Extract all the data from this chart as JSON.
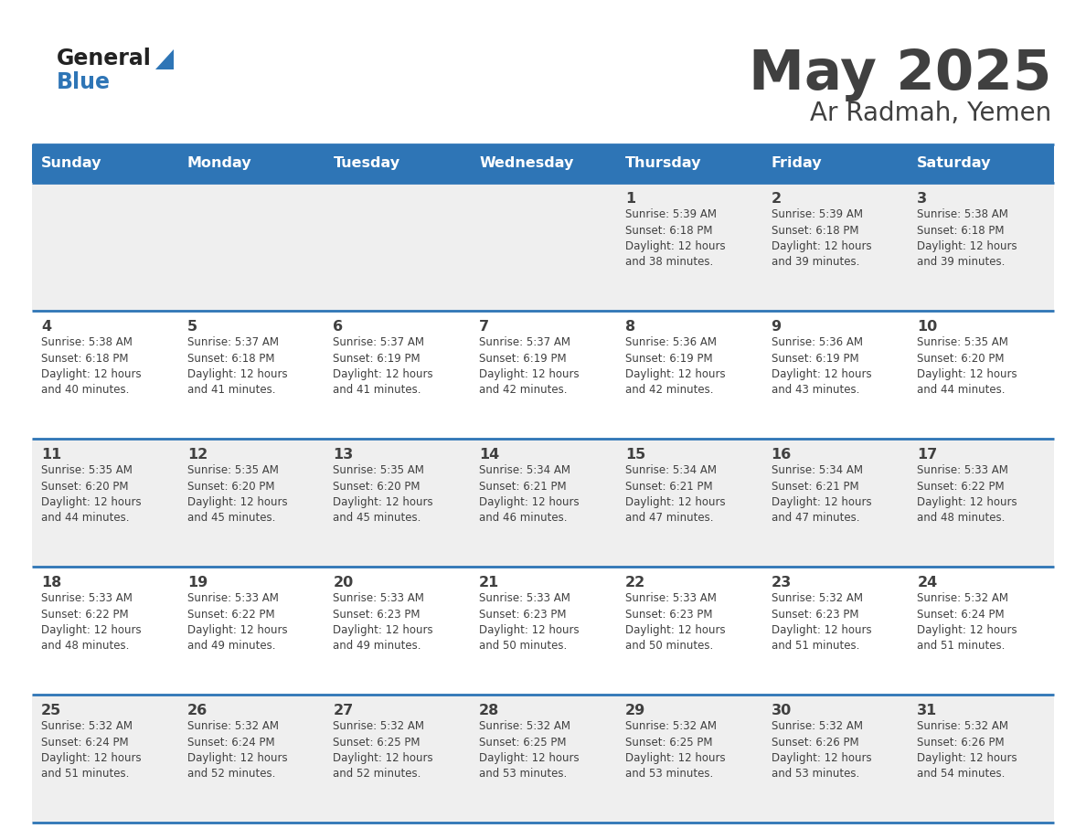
{
  "title": "May 2025",
  "subtitle": "Ar Radmah, Yemen",
  "header_bg": "#2E75B6",
  "header_text_color": "#FFFFFF",
  "cell_bg_odd": "#EFEFEF",
  "cell_bg_even": "#FFFFFF",
  "border_color": "#2E75B6",
  "text_color": "#404040",
  "days_of_week": [
    "Sunday",
    "Monday",
    "Tuesday",
    "Wednesday",
    "Thursday",
    "Friday",
    "Saturday"
  ],
  "weeks": [
    [
      {
        "day": "",
        "sunrise": "",
        "sunset": "",
        "daylight_a": "",
        "daylight_b": ""
      },
      {
        "day": "",
        "sunrise": "",
        "sunset": "",
        "daylight_a": "",
        "daylight_b": ""
      },
      {
        "day": "",
        "sunrise": "",
        "sunset": "",
        "daylight_a": "",
        "daylight_b": ""
      },
      {
        "day": "",
        "sunrise": "",
        "sunset": "",
        "daylight_a": "",
        "daylight_b": ""
      },
      {
        "day": "1",
        "sunrise": "Sunrise: 5:39 AM",
        "sunset": "Sunset: 6:18 PM",
        "daylight_a": "Daylight: 12 hours",
        "daylight_b": "and 38 minutes."
      },
      {
        "day": "2",
        "sunrise": "Sunrise: 5:39 AM",
        "sunset": "Sunset: 6:18 PM",
        "daylight_a": "Daylight: 12 hours",
        "daylight_b": "and 39 minutes."
      },
      {
        "day": "3",
        "sunrise": "Sunrise: 5:38 AM",
        "sunset": "Sunset: 6:18 PM",
        "daylight_a": "Daylight: 12 hours",
        "daylight_b": "and 39 minutes."
      }
    ],
    [
      {
        "day": "4",
        "sunrise": "Sunrise: 5:38 AM",
        "sunset": "Sunset: 6:18 PM",
        "daylight_a": "Daylight: 12 hours",
        "daylight_b": "and 40 minutes."
      },
      {
        "day": "5",
        "sunrise": "Sunrise: 5:37 AM",
        "sunset": "Sunset: 6:18 PM",
        "daylight_a": "Daylight: 12 hours",
        "daylight_b": "and 41 minutes."
      },
      {
        "day": "6",
        "sunrise": "Sunrise: 5:37 AM",
        "sunset": "Sunset: 6:19 PM",
        "daylight_a": "Daylight: 12 hours",
        "daylight_b": "and 41 minutes."
      },
      {
        "day": "7",
        "sunrise": "Sunrise: 5:37 AM",
        "sunset": "Sunset: 6:19 PM",
        "daylight_a": "Daylight: 12 hours",
        "daylight_b": "and 42 minutes."
      },
      {
        "day": "8",
        "sunrise": "Sunrise: 5:36 AM",
        "sunset": "Sunset: 6:19 PM",
        "daylight_a": "Daylight: 12 hours",
        "daylight_b": "and 42 minutes."
      },
      {
        "day": "9",
        "sunrise": "Sunrise: 5:36 AM",
        "sunset": "Sunset: 6:19 PM",
        "daylight_a": "Daylight: 12 hours",
        "daylight_b": "and 43 minutes."
      },
      {
        "day": "10",
        "sunrise": "Sunrise: 5:35 AM",
        "sunset": "Sunset: 6:20 PM",
        "daylight_a": "Daylight: 12 hours",
        "daylight_b": "and 44 minutes."
      }
    ],
    [
      {
        "day": "11",
        "sunrise": "Sunrise: 5:35 AM",
        "sunset": "Sunset: 6:20 PM",
        "daylight_a": "Daylight: 12 hours",
        "daylight_b": "and 44 minutes."
      },
      {
        "day": "12",
        "sunrise": "Sunrise: 5:35 AM",
        "sunset": "Sunset: 6:20 PM",
        "daylight_a": "Daylight: 12 hours",
        "daylight_b": "and 45 minutes."
      },
      {
        "day": "13",
        "sunrise": "Sunrise: 5:35 AM",
        "sunset": "Sunset: 6:20 PM",
        "daylight_a": "Daylight: 12 hours",
        "daylight_b": "and 45 minutes."
      },
      {
        "day": "14",
        "sunrise": "Sunrise: 5:34 AM",
        "sunset": "Sunset: 6:21 PM",
        "daylight_a": "Daylight: 12 hours",
        "daylight_b": "and 46 minutes."
      },
      {
        "day": "15",
        "sunrise": "Sunrise: 5:34 AM",
        "sunset": "Sunset: 6:21 PM",
        "daylight_a": "Daylight: 12 hours",
        "daylight_b": "and 47 minutes."
      },
      {
        "day": "16",
        "sunrise": "Sunrise: 5:34 AM",
        "sunset": "Sunset: 6:21 PM",
        "daylight_a": "Daylight: 12 hours",
        "daylight_b": "and 47 minutes."
      },
      {
        "day": "17",
        "sunrise": "Sunrise: 5:33 AM",
        "sunset": "Sunset: 6:22 PM",
        "daylight_a": "Daylight: 12 hours",
        "daylight_b": "and 48 minutes."
      }
    ],
    [
      {
        "day": "18",
        "sunrise": "Sunrise: 5:33 AM",
        "sunset": "Sunset: 6:22 PM",
        "daylight_a": "Daylight: 12 hours",
        "daylight_b": "and 48 minutes."
      },
      {
        "day": "19",
        "sunrise": "Sunrise: 5:33 AM",
        "sunset": "Sunset: 6:22 PM",
        "daylight_a": "Daylight: 12 hours",
        "daylight_b": "and 49 minutes."
      },
      {
        "day": "20",
        "sunrise": "Sunrise: 5:33 AM",
        "sunset": "Sunset: 6:23 PM",
        "daylight_a": "Daylight: 12 hours",
        "daylight_b": "and 49 minutes."
      },
      {
        "day": "21",
        "sunrise": "Sunrise: 5:33 AM",
        "sunset": "Sunset: 6:23 PM",
        "daylight_a": "Daylight: 12 hours",
        "daylight_b": "and 50 minutes."
      },
      {
        "day": "22",
        "sunrise": "Sunrise: 5:33 AM",
        "sunset": "Sunset: 6:23 PM",
        "daylight_a": "Daylight: 12 hours",
        "daylight_b": "and 50 minutes."
      },
      {
        "day": "23",
        "sunrise": "Sunrise: 5:32 AM",
        "sunset": "Sunset: 6:23 PM",
        "daylight_a": "Daylight: 12 hours",
        "daylight_b": "and 51 minutes."
      },
      {
        "day": "24",
        "sunrise": "Sunrise: 5:32 AM",
        "sunset": "Sunset: 6:24 PM",
        "daylight_a": "Daylight: 12 hours",
        "daylight_b": "and 51 minutes."
      }
    ],
    [
      {
        "day": "25",
        "sunrise": "Sunrise: 5:32 AM",
        "sunset": "Sunset: 6:24 PM",
        "daylight_a": "Daylight: 12 hours",
        "daylight_b": "and 51 minutes."
      },
      {
        "day": "26",
        "sunrise": "Sunrise: 5:32 AM",
        "sunset": "Sunset: 6:24 PM",
        "daylight_a": "Daylight: 12 hours",
        "daylight_b": "and 52 minutes."
      },
      {
        "day": "27",
        "sunrise": "Sunrise: 5:32 AM",
        "sunset": "Sunset: 6:25 PM",
        "daylight_a": "Daylight: 12 hours",
        "daylight_b": "and 52 minutes."
      },
      {
        "day": "28",
        "sunrise": "Sunrise: 5:32 AM",
        "sunset": "Sunset: 6:25 PM",
        "daylight_a": "Daylight: 12 hours",
        "daylight_b": "and 53 minutes."
      },
      {
        "day": "29",
        "sunrise": "Sunrise: 5:32 AM",
        "sunset": "Sunset: 6:25 PM",
        "daylight_a": "Daylight: 12 hours",
        "daylight_b": "and 53 minutes."
      },
      {
        "day": "30",
        "sunrise": "Sunrise: 5:32 AM",
        "sunset": "Sunset: 6:26 PM",
        "daylight_a": "Daylight: 12 hours",
        "daylight_b": "and 53 minutes."
      },
      {
        "day": "31",
        "sunrise": "Sunrise: 5:32 AM",
        "sunset": "Sunset: 6:26 PM",
        "daylight_a": "Daylight: 12 hours",
        "daylight_b": "and 54 minutes."
      }
    ]
  ],
  "logo_general_color": "#222222",
  "logo_blue_color": "#2E75B6",
  "logo_triangle_color": "#2E75B6"
}
